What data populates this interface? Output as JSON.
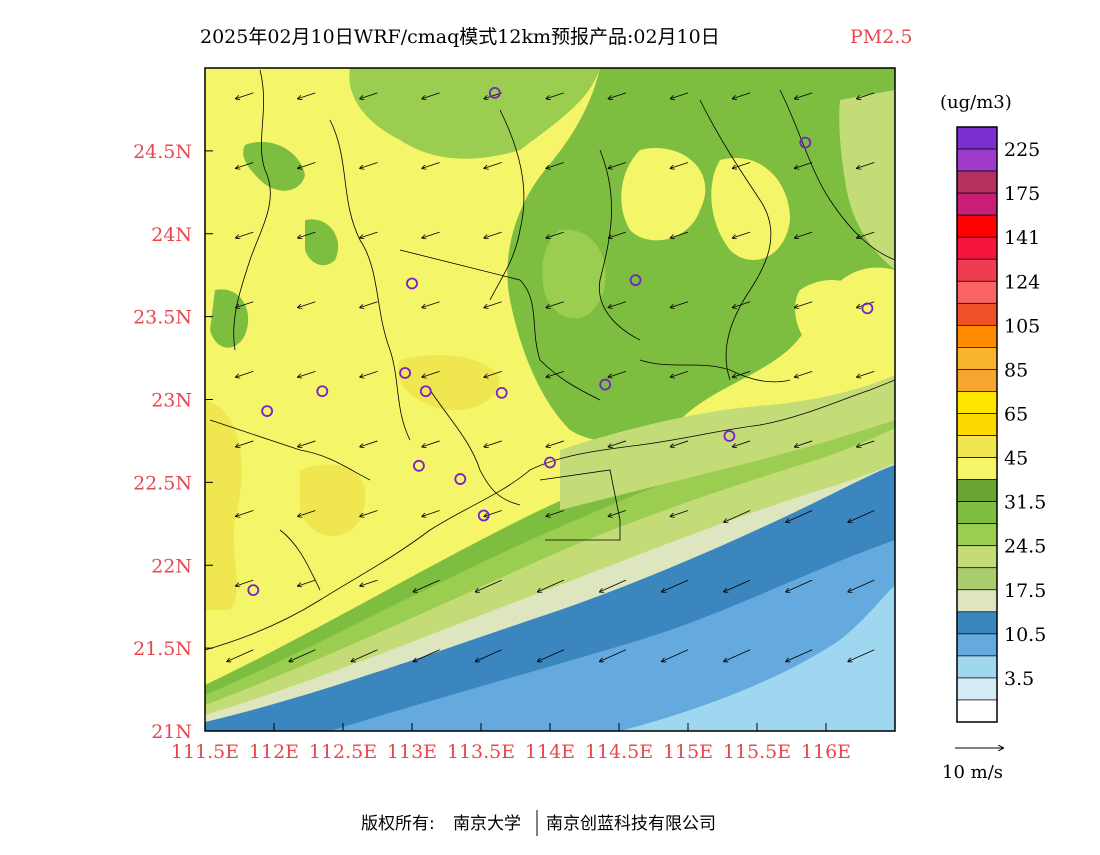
{
  "title": {
    "main": "2025年02月10日WRF/cmaq模式12km预报产品:02月10日",
    "pollutant": "PM2.5",
    "pollutant_color": "#e8474f"
  },
  "axes": {
    "label_color": "#e8474f",
    "lat_labels": [
      "24.5N",
      "24N",
      "23.5N",
      "23N",
      "22.5N",
      "22N",
      "21.5N",
      "21N"
    ],
    "lat_values": [
      24.5,
      24.0,
      23.5,
      23.0,
      22.5,
      22.0,
      21.5,
      21.0
    ],
    "lon_labels": [
      "111.5E",
      "112E",
      "112.5E",
      "113E",
      "113.5E",
      "114E",
      "114.5E",
      "115E",
      "115.5E",
      "116E"
    ],
    "lon_values": [
      111.5,
      112.0,
      112.5,
      113.0,
      113.5,
      114.0,
      114.5,
      115.0,
      115.5,
      116.0
    ],
    "lon_range": [
      111.5,
      116.5
    ],
    "lat_range": [
      21.0,
      25.0
    ]
  },
  "legend": {
    "unit": "(ug/m3)",
    "labels": [
      "225",
      "175",
      "141",
      "124",
      "105",
      "85",
      "65",
      "45",
      "31.5",
      "24.5",
      "17.5",
      "10.5",
      "3.5"
    ],
    "colors": [
      "#7b2fd0",
      "#a03ac8",
      "#b3305f",
      "#c81e78",
      "#ff0000",
      "#f5143c",
      "#f03c50",
      "#fa6464",
      "#f05028",
      "#ff8c00",
      "#fab430",
      "#f5a530",
      "#ffe600",
      "#ffd700",
      "#f0e650",
      "#f5f569",
      "#6aa432",
      "#7dbd40",
      "#9acd50",
      "#c3dc78",
      "#aacc6e",
      "#dde6be",
      "#3c86bf",
      "#64aade",
      "#a0d7f0",
      "#d2ebf6",
      "#ffffff"
    ]
  },
  "wind_key": {
    "label": "10 m/s"
  },
  "footer": {
    "owner_label": "版权所有:",
    "org1": "南京大学",
    "org2": "南京创蓝科技有限公司"
  },
  "sites": [
    {
      "lon": 113.6,
      "lat": 24.85
    },
    {
      "lon": 115.85,
      "lat": 24.55
    },
    {
      "lon": 113.0,
      "lat": 23.7
    },
    {
      "lon": 114.62,
      "lat": 23.72
    },
    {
      "lon": 116.3,
      "lat": 23.55
    },
    {
      "lon": 112.95,
      "lat": 23.16
    },
    {
      "lon": 112.35,
      "lat": 23.05
    },
    {
      "lon": 113.1,
      "lat": 23.05
    },
    {
      "lon": 113.65,
      "lat": 23.04
    },
    {
      "lon": 114.4,
      "lat": 23.09
    },
    {
      "lon": 111.95,
      "lat": 22.93
    },
    {
      "lon": 115.3,
      "lat": 22.78
    },
    {
      "lon": 113.05,
      "lat": 22.6
    },
    {
      "lon": 114.0,
      "lat": 22.62
    },
    {
      "lon": 113.35,
      "lat": 22.52
    },
    {
      "lon": 113.52,
      "lat": 22.3
    },
    {
      "lon": 111.85,
      "lat": 21.85
    }
  ],
  "wind_vectors": {
    "land_u": -6,
    "land_v": -2,
    "sea_u": -9,
    "sea_v": -4
  }
}
